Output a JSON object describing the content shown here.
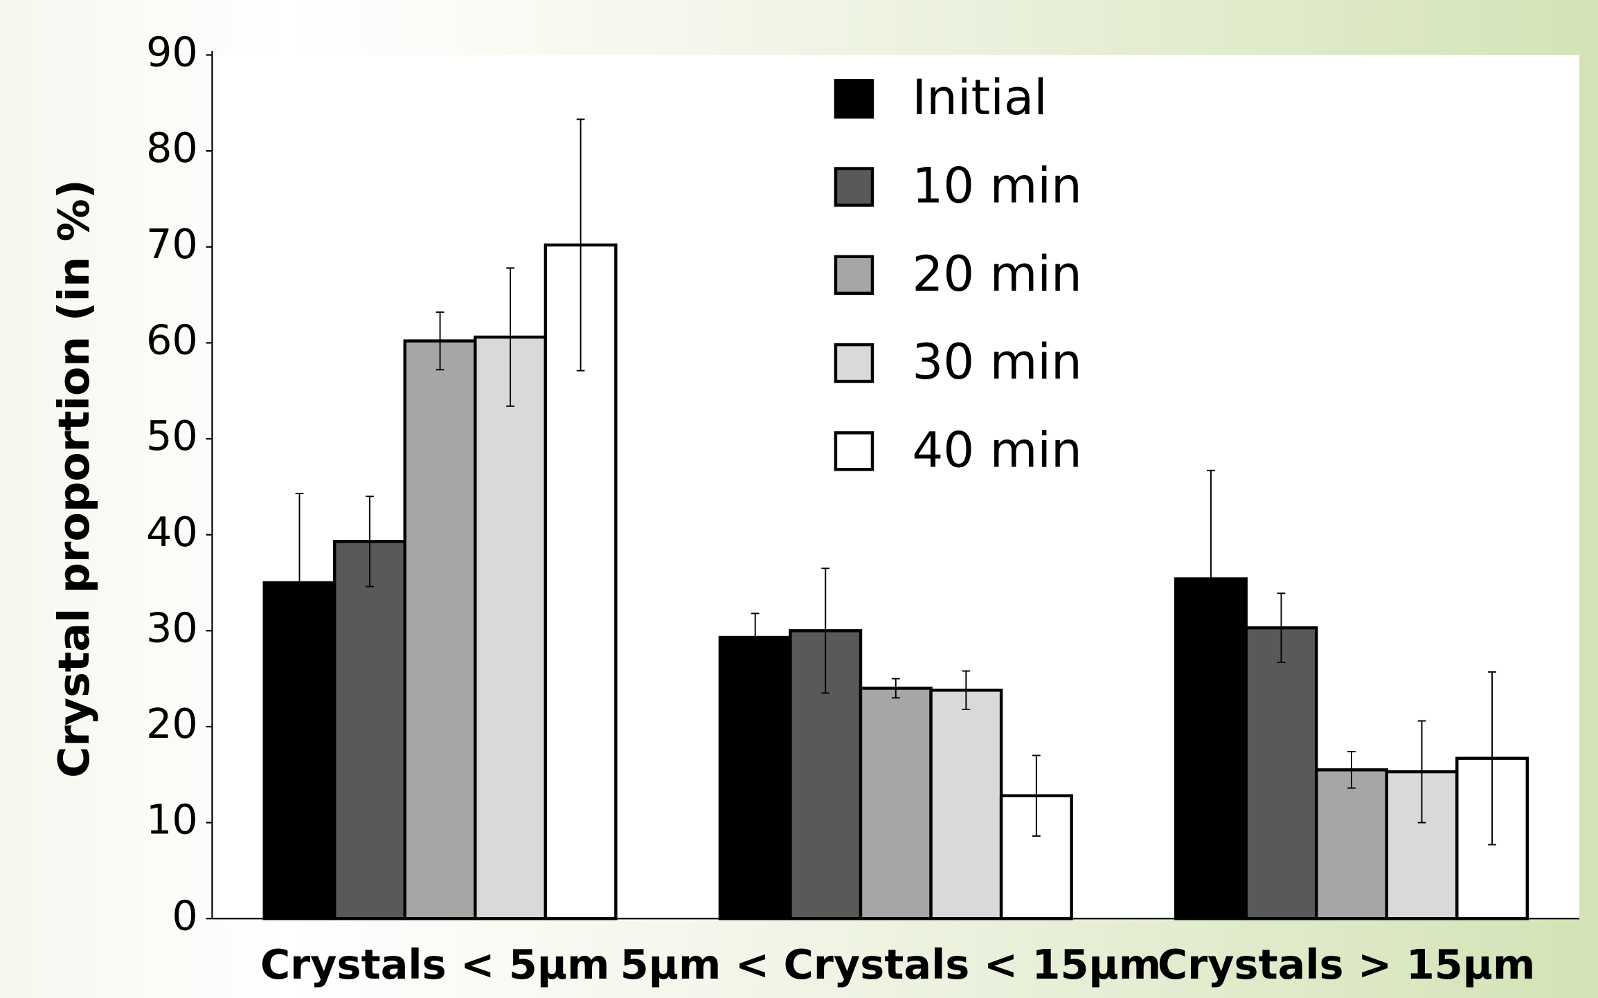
{
  "chart_data": {
    "type": "bar",
    "ylabel": "Crystal proportion (in %)",
    "categories": [
      "Crystals < 5µm",
      "5µm < Crystals < 15µm",
      "Crystals > 15µm"
    ],
    "series": [
      {
        "name": "Initial",
        "color": "#000000",
        "values": [
          35,
          29.3,
          35.4
        ],
        "errors": [
          9.3,
          2.5,
          11.3
        ]
      },
      {
        "name": "10 min",
        "color": "#595959",
        "values": [
          39.3,
          30,
          30.3
        ],
        "errors": [
          4.7,
          6.5,
          3.6
        ]
      },
      {
        "name": "20 min",
        "color": "#a6a6a6",
        "values": [
          60.2,
          24,
          15.5
        ],
        "errors": [
          3,
          1,
          1.9
        ]
      },
      {
        "name": "30 min",
        "color": "#d9d9d9",
        "values": [
          60.6,
          23.8,
          15.3
        ],
        "errors": [
          7.2,
          2,
          5.3
        ]
      },
      {
        "name": "40 min",
        "color": "#ffffff",
        "values": [
          70.2,
          12.8,
          16.7
        ],
        "errors": [
          13.1,
          4.2,
          9
        ]
      }
    ],
    "ylim": [
      0,
      90
    ],
    "yticks": [
      0,
      10,
      20,
      30,
      40,
      50,
      60,
      70,
      80,
      90
    ],
    "grid": false,
    "legend": "upper center"
  }
}
